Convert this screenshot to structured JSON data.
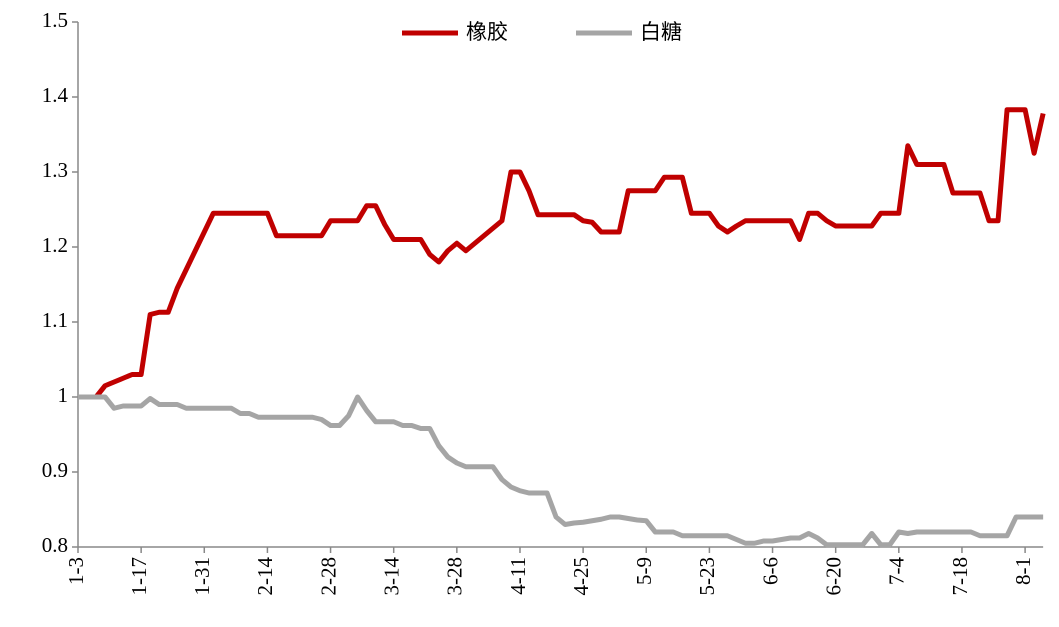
{
  "chart_data": {
    "type": "line",
    "categories": [
      "1-3",
      null,
      null,
      null,
      null,
      null,
      null,
      "1-17",
      null,
      null,
      null,
      null,
      null,
      null,
      "1-31",
      null,
      null,
      null,
      null,
      null,
      null,
      "2-14",
      null,
      null,
      null,
      null,
      null,
      null,
      "2-28",
      null,
      null,
      null,
      null,
      null,
      null,
      "3-14",
      null,
      null,
      null,
      null,
      null,
      null,
      "3-28",
      null,
      null,
      null,
      null,
      null,
      null,
      "4-11",
      null,
      null,
      null,
      null,
      null,
      null,
      "4-25",
      null,
      null,
      null,
      null,
      null,
      null,
      "5-9",
      null,
      null,
      null,
      null,
      null,
      null,
      "5-23",
      null,
      null,
      null,
      null,
      null,
      null,
      "6-6",
      null,
      null,
      null,
      null,
      null,
      null,
      "6-20",
      null,
      null,
      null,
      null,
      null,
      null,
      "7-4",
      null,
      null,
      null,
      null,
      null,
      null,
      "7-18",
      null,
      null,
      null,
      null,
      null,
      null,
      "8-1",
      null,
      null
    ],
    "series": [
      {
        "name": "橡胶",
        "color": "#c00000",
        "values": [
          1.0,
          1.0,
          1.0,
          1.015,
          1.02,
          1.025,
          1.03,
          1.03,
          1.11,
          1.113,
          1.113,
          1.145,
          1.17,
          1.195,
          1.22,
          1.245,
          1.245,
          1.245,
          1.245,
          1.245,
          1.245,
          1.245,
          1.215,
          1.215,
          1.215,
          1.215,
          1.215,
          1.215,
          1.235,
          1.235,
          1.235,
          1.235,
          1.255,
          1.255,
          1.23,
          1.21,
          1.21,
          1.21,
          1.21,
          1.19,
          1.18,
          1.195,
          1.205,
          1.195,
          1.205,
          1.215,
          1.225,
          1.235,
          1.3,
          1.3,
          1.275,
          1.243,
          1.243,
          1.243,
          1.243,
          1.243,
          1.235,
          1.233,
          1.22,
          1.22,
          1.22,
          1.275,
          1.275,
          1.275,
          1.275,
          1.293,
          1.293,
          1.293,
          1.245,
          1.245,
          1.245,
          1.228,
          1.22,
          1.228,
          1.235,
          1.235,
          1.235,
          1.235,
          1.235,
          1.235,
          1.21,
          1.245,
          1.245,
          1.235,
          1.228,
          1.228,
          1.228,
          1.228,
          1.228,
          1.245,
          1.245,
          1.245,
          1.335,
          1.31,
          1.31,
          1.31,
          1.31,
          1.272,
          1.272,
          1.272,
          1.272,
          1.235,
          1.235,
          1.383,
          1.383,
          1.383,
          1.325,
          1.378
        ]
      },
      {
        "name": "白糖",
        "color": "#a5a5a5",
        "values": [
          1.0,
          1.0,
          1.0,
          1.0,
          0.985,
          0.988,
          0.988,
          0.988,
          0.998,
          0.99,
          0.99,
          0.99,
          0.985,
          0.985,
          0.985,
          0.985,
          0.985,
          0.985,
          0.978,
          0.978,
          0.973,
          0.973,
          0.973,
          0.973,
          0.973,
          0.973,
          0.973,
          0.97,
          0.962,
          0.962,
          0.975,
          1.0,
          0.982,
          0.967,
          0.967,
          0.967,
          0.962,
          0.962,
          0.958,
          0.958,
          0.935,
          0.92,
          0.912,
          0.907,
          0.907,
          0.907,
          0.907,
          0.89,
          0.88,
          0.875,
          0.872,
          0.872,
          0.872,
          0.84,
          0.83,
          0.832,
          0.833,
          0.835,
          0.837,
          0.84,
          0.84,
          0.838,
          0.836,
          0.835,
          0.82,
          0.82,
          0.82,
          0.815,
          0.815,
          0.815,
          0.815,
          0.815,
          0.815,
          0.81,
          0.805,
          0.805,
          0.808,
          0.808,
          0.81,
          0.812,
          0.812,
          0.818,
          0.812,
          0.803,
          0.803,
          0.803,
          0.803,
          0.803,
          0.818,
          0.803,
          0.803,
          0.82,
          0.818,
          0.82,
          0.82,
          0.82,
          0.82,
          0.82,
          0.82,
          0.82,
          0.815,
          0.815,
          0.815,
          0.815,
          0.84,
          0.84,
          0.84,
          0.84
        ]
      }
    ],
    "ylim": [
      0.8,
      1.5
    ],
    "yticks": [
      0.8,
      0.9,
      1,
      1.1,
      1.2,
      1.3,
      1.4,
      1.5
    ],
    "legend": "top"
  }
}
